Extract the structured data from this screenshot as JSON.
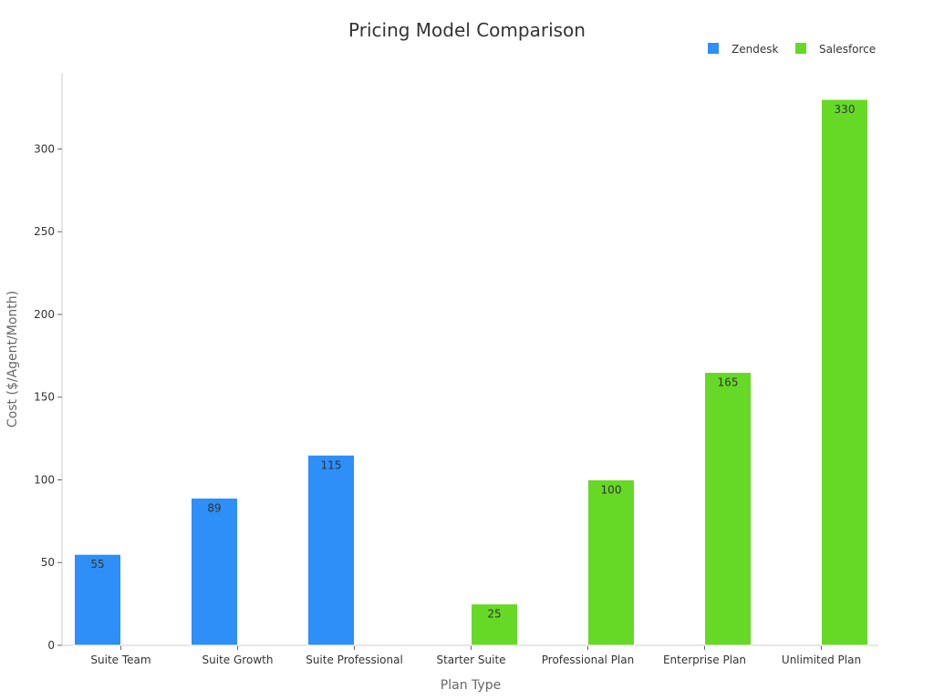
{
  "chart_data": {
    "type": "bar",
    "title": "Pricing Model Comparison",
    "xlabel": "Plan Type",
    "ylabel": "Cost ($/Agent/Month)",
    "ylim": [
      0,
      346
    ],
    "yticks": [
      0,
      50,
      100,
      150,
      200,
      250,
      300
    ],
    "grid": false,
    "legend_position": "top-right",
    "categories": [
      "Suite Team",
      "Suite Growth",
      "Suite Professional",
      "Starter Suite",
      "Professional Plan",
      "Enterprise Plan",
      "Unlimited Plan"
    ],
    "series": [
      {
        "name": "Zendesk",
        "color": "#2d8ff7",
        "values": [
          55,
          89,
          115,
          null,
          null,
          null,
          null
        ]
      },
      {
        "name": "Salesforce",
        "color": "#66d926",
        "values": [
          null,
          null,
          null,
          25,
          100,
          165,
          330
        ]
      }
    ]
  }
}
